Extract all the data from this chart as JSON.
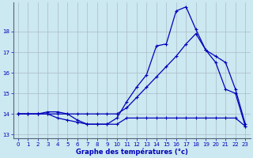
{
  "xlabel": "Graphe des températures (°c)",
  "xlim": [
    -0.5,
    23.5
  ],
  "ylim": [
    12.8,
    19.4
  ],
  "yticks": [
    13,
    14,
    15,
    16,
    17,
    18
  ],
  "xticks": [
    0,
    1,
    2,
    3,
    4,
    5,
    6,
    7,
    8,
    9,
    10,
    11,
    12,
    13,
    14,
    15,
    16,
    17,
    18,
    19,
    20,
    21,
    22,
    23
  ],
  "bg_color": "#cce8f0",
  "grid_color": "#aabbc8",
  "line_color": "#0000bb",
  "line1_x": [
    0,
    1,
    2,
    3,
    4,
    5,
    6,
    7,
    8,
    9,
    10,
    11,
    12,
    13,
    14,
    15,
    16,
    17,
    18,
    19,
    20,
    21,
    22,
    23
  ],
  "line1_y": [
    14.0,
    14.0,
    14.0,
    14.0,
    13.8,
    13.7,
    13.6,
    13.5,
    13.5,
    13.5,
    13.5,
    13.8,
    13.8,
    13.8,
    13.8,
    13.8,
    13.8,
    13.8,
    13.8,
    13.8,
    13.8,
    13.8,
    13.8,
    13.4
  ],
  "line2_x": [
    0,
    1,
    2,
    3,
    4,
    5,
    6,
    7,
    8,
    9,
    10,
    11,
    12,
    13,
    14,
    15,
    16,
    17,
    18,
    19,
    20,
    21,
    22,
    23
  ],
  "line2_y": [
    14.0,
    14.0,
    14.0,
    14.1,
    14.1,
    14.0,
    13.7,
    13.5,
    13.5,
    13.5,
    13.8,
    14.6,
    15.3,
    15.9,
    17.3,
    17.4,
    19.0,
    19.2,
    18.1,
    17.1,
    16.5,
    15.2,
    15.0,
    13.4
  ],
  "line3_x": [
    0,
    1,
    2,
    3,
    4,
    5,
    6,
    7,
    8,
    9,
    10,
    11,
    12,
    13,
    14,
    15,
    16,
    17,
    18,
    19,
    20,
    21,
    22,
    23
  ],
  "line3_y": [
    14.0,
    14.0,
    14.0,
    14.0,
    14.0,
    14.0,
    14.0,
    14.0,
    14.0,
    14.0,
    14.0,
    14.3,
    14.8,
    15.3,
    15.8,
    16.3,
    16.8,
    17.4,
    17.9,
    17.1,
    16.8,
    16.5,
    15.2,
    13.5
  ]
}
